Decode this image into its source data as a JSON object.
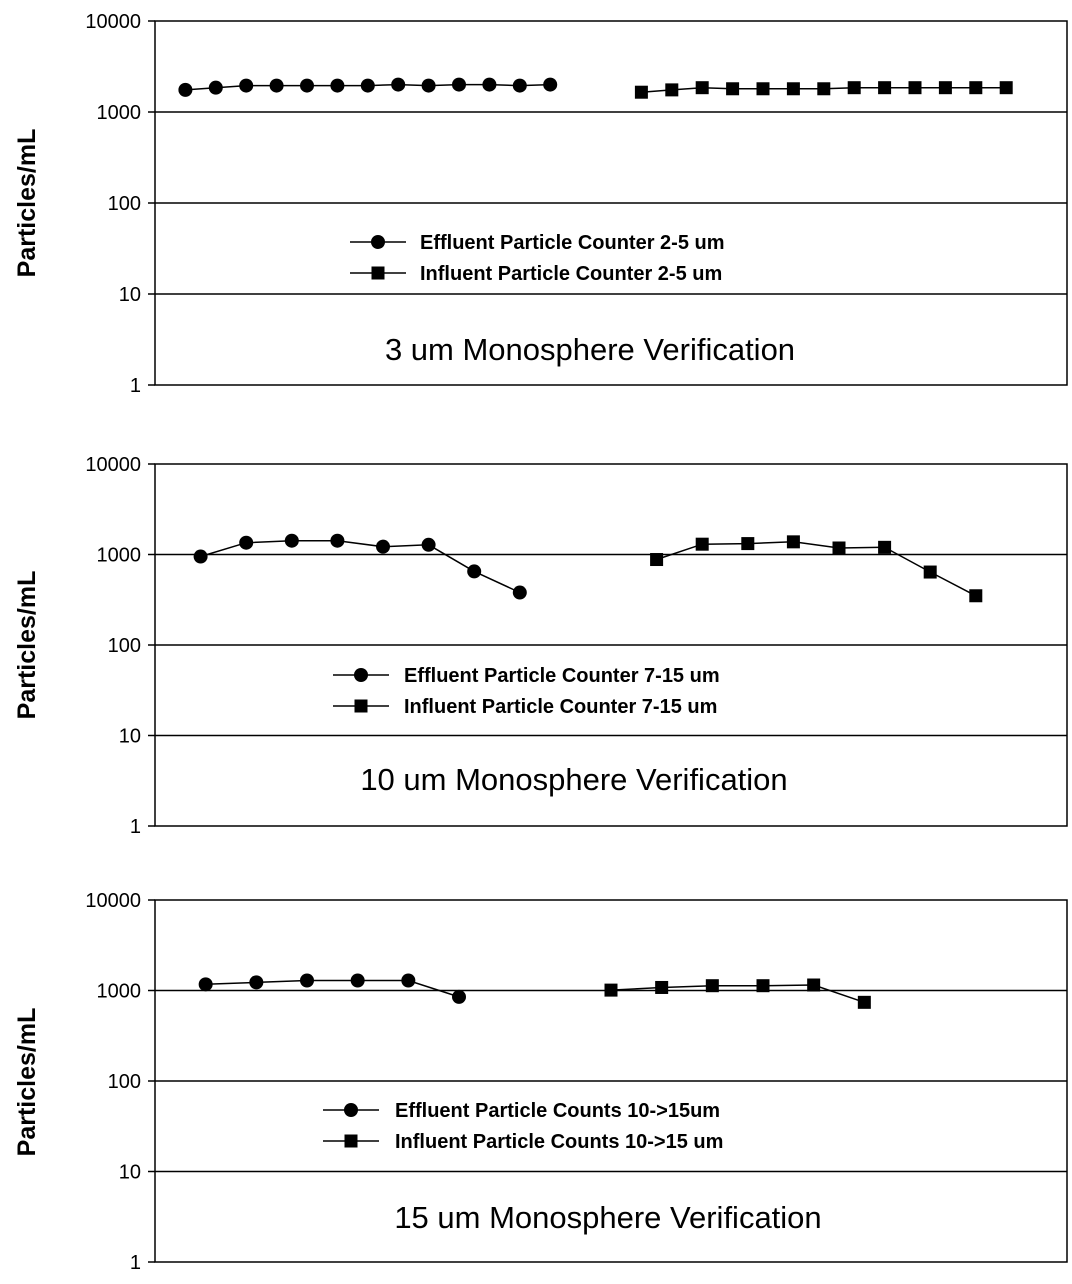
{
  "chart_data": [
    {
      "type": "line",
      "y_scale": "log",
      "ylim": [
        1,
        10000
      ],
      "yticks": [
        "10000",
        "1000",
        "100",
        "10",
        "1"
      ],
      "ylabel": "Particles/mL",
      "xlabel": "",
      "grid": "horizontal",
      "legend": "center",
      "annotation": "3 um Monosphere Verification",
      "series": [
        {
          "name": "Effluent Particle Counter 2-5 um",
          "marker": "circle",
          "x": [
            1,
            2,
            3,
            4,
            5,
            6,
            7,
            8,
            9,
            10,
            11,
            12,
            13
          ],
          "y": [
            1750,
            1850,
            1950,
            1950,
            1950,
            1950,
            1950,
            2000,
            1950,
            2000,
            2000,
            1950,
            2000
          ]
        },
        {
          "name": "Influent Particle Counter 2-5 um",
          "marker": "square",
          "x": [
            16,
            17,
            18,
            19,
            20,
            21,
            22,
            23,
            24,
            25,
            26,
            27,
            28
          ],
          "y": [
            1650,
            1750,
            1850,
            1800,
            1800,
            1800,
            1800,
            1850,
            1850,
            1850,
            1850,
            1850,
            1850
          ]
        }
      ]
    },
    {
      "type": "line",
      "y_scale": "log",
      "ylim": [
        1,
        10000
      ],
      "yticks": [
        "10000",
        "1000",
        "100",
        "10",
        "1"
      ],
      "ylabel": "Particles/mL",
      "xlabel": "",
      "grid": "horizontal",
      "legend": "center",
      "annotation": "10 um Monosphere Verification",
      "series": [
        {
          "name": "Effluent Particle Counter 7-15 um",
          "marker": "circle",
          "x": [
            1,
            2,
            3,
            4,
            5,
            6,
            7,
            8
          ],
          "y": [
            950,
            1350,
            1420,
            1420,
            1220,
            1280,
            650,
            380
          ]
        },
        {
          "name": "Influent Particle Counter 7-15 um",
          "marker": "square",
          "x": [
            11,
            12,
            13,
            14,
            15,
            16,
            17,
            18
          ],
          "y": [
            880,
            1300,
            1320,
            1380,
            1180,
            1200,
            640,
            350
          ]
        }
      ]
    },
    {
      "type": "line",
      "y_scale": "log",
      "ylim": [
        1,
        10000
      ],
      "yticks": [
        "10000",
        "1000",
        "100",
        "10",
        "1"
      ],
      "ylabel": "Particles/mL",
      "xlabel": "",
      "grid": "horizontal",
      "legend": "center",
      "annotation": "15 um Monosphere Verification",
      "series": [
        {
          "name": "Effluent Particle Counts 10->15um",
          "marker": "circle",
          "x": [
            1,
            2,
            3,
            4,
            5,
            6
          ],
          "y": [
            1170,
            1230,
            1290,
            1290,
            1290,
            850
          ]
        },
        {
          "name": "Influent Particle Counts 10->15 um",
          "marker": "square",
          "x": [
            9,
            10,
            11,
            12,
            13,
            14
          ],
          "y": [
            1010,
            1080,
            1130,
            1130,
            1150,
            740
          ]
        }
      ]
    }
  ]
}
